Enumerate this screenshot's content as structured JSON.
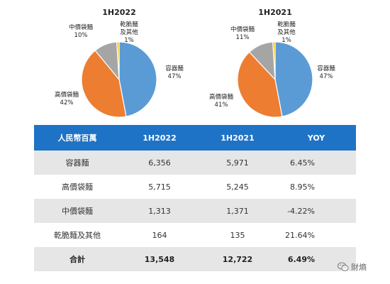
{
  "chart_data": [
    {
      "type": "pie",
      "title": "1H2022",
      "slices": [
        {
          "label": "容器麵",
          "value": 47,
          "pct_label": "47%",
          "color": "#5b9bd5"
        },
        {
          "label": "高價袋麵",
          "value": 42,
          "pct_label": "42%",
          "color": "#ed7d31"
        },
        {
          "label": "中價袋麵",
          "value": 10,
          "pct_label": "10%",
          "color": "#a5a5a5"
        },
        {
          "label": "乾脆麵及其他",
          "value": 1,
          "pct_label": "1%",
          "color": "#ffc000"
        }
      ]
    },
    {
      "type": "pie",
      "title": "1H2021",
      "slices": [
        {
          "label": "容器麵",
          "value": 47,
          "pct_label": "47%",
          "color": "#5b9bd5"
        },
        {
          "label": "高價袋麵",
          "value": 41,
          "pct_label": "41%",
          "color": "#ed7d31"
        },
        {
          "label": "中價袋麵",
          "value": 11,
          "pct_label": "11%",
          "color": "#a5a5a5"
        },
        {
          "label": "乾脆麵及其他",
          "value": 1,
          "pct_label": "1%",
          "color": "#ffc000"
        }
      ]
    },
    {
      "type": "table",
      "headers": [
        "人民幣百萬",
        "1H2022",
        "1H2021",
        "YOY"
      ],
      "rows": [
        [
          "容器麵",
          "6,356",
          "5,971",
          "6.45%"
        ],
        [
          "高價袋麵",
          "5,715",
          "5,245",
          "8.95%"
        ],
        [
          "中價袋麵",
          "1,313",
          "1,371",
          "-4.22%"
        ],
        [
          "乾脆麵及其他",
          "164",
          "135",
          "21.64%"
        ]
      ],
      "total": [
        "合計",
        "13,548",
        "12,722",
        "6.49%"
      ]
    }
  ],
  "watermark": {
    "text": "財熵",
    "icon": "wechat-icon"
  }
}
